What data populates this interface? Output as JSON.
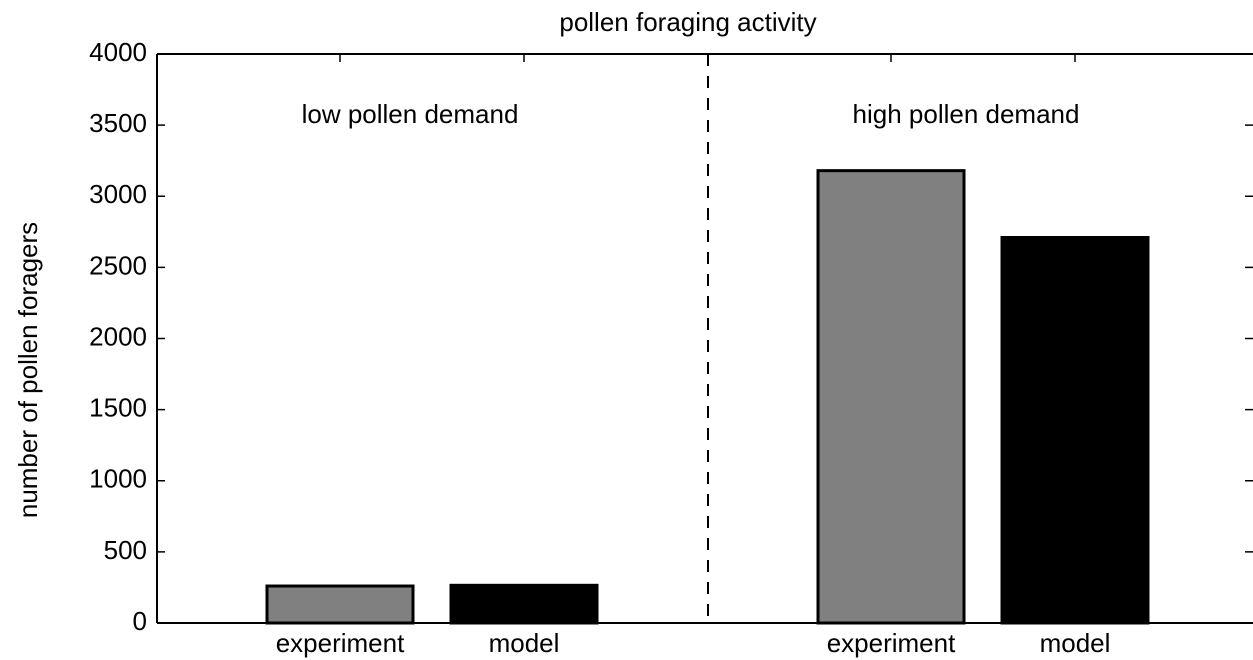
{
  "chart_data": {
    "type": "bar",
    "title": "pollen foraging activity",
    "y_label": "number of pollen foragers",
    "annotations": [
      "low pollen demand",
      "high pollen demand"
    ],
    "categories": [
      "experiment",
      "model",
      "experiment",
      "model"
    ],
    "values": [
      260,
      265,
      3180,
      2710
    ],
    "colors": [
      "#808080",
      "#000000",
      "#808080",
      "#000000"
    ],
    "ylim": [
      0,
      4000
    ],
    "yticks": [
      0,
      500,
      1000,
      1500,
      2000,
      2500,
      3000,
      3500,
      4000
    ]
  }
}
